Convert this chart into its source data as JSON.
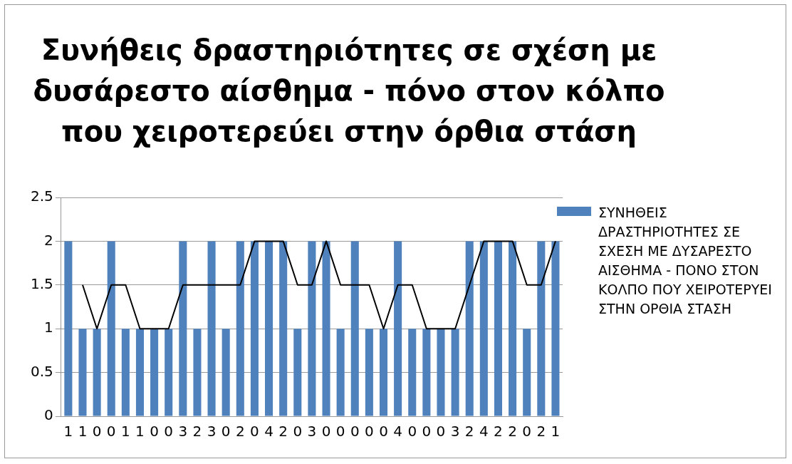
{
  "chart_data": {
    "type": "bar",
    "title": "Συνήθεις δραστηριότητες σε σχέση με δυσάρεστο αίσθημα - πόνο στον κόλπο που χειροτερεύει στην όρθια στάση",
    "categories": [
      "1",
      "1",
      "0",
      "0",
      "1",
      "1",
      "0",
      "0",
      "3",
      "2",
      "3",
      "0",
      "2",
      "0",
      "4",
      "2",
      "0",
      "3",
      "0",
      "0",
      "0",
      "0",
      "0",
      "4",
      "0",
      "0",
      "0",
      "3",
      "2",
      "4",
      "2",
      "2",
      "0",
      "2",
      "1"
    ],
    "series": [
      {
        "name": "ΣΥΝΗΘΕΙΣ ΔΡΑΣΤΗΡΙΟΤΗΤΕΣ ΣΕ ΣΧΕΣΗ ΜΕ ΔΥΣΑΡΕΣΤΟ ΑΙΣΘΗΜΑ - ΠΟΝΟ ΣΤΟΝ ΚΟΛΠΟ ΠΟΥ ΧΕΙΡΟΤΕΡΥΕΙ ΣΤΗΝ ΟΡΘΙΑ ΣΤΑΣΗ",
        "color": "#4f81bd",
        "values": [
          2,
          1,
          1,
          2,
          1,
          1,
          1,
          1,
          2,
          1,
          2,
          1,
          2,
          2,
          2,
          2,
          1,
          2,
          2,
          1,
          2,
          1,
          1,
          2,
          1,
          1,
          1,
          1,
          2,
          2,
          2,
          2,
          1,
          2,
          2
        ]
      },
      {
        "type": "line",
        "color": "#000000",
        "marker": "none",
        "values": [
          null,
          1.5,
          1,
          1.5,
          1.5,
          1,
          1,
          1,
          1.5,
          1.5,
          1.5,
          1.5,
          1.5,
          2,
          2,
          2,
          1.5,
          1.5,
          2,
          1.5,
          1.5,
          1.5,
          1,
          1.5,
          1.5,
          1,
          1,
          1,
          1.5,
          2,
          2,
          2,
          1.5,
          1.5,
          2
        ]
      }
    ],
    "ylim": [
      0,
      2.5
    ],
    "yticks": [
      0,
      0.5,
      1,
      1.5,
      2,
      2.5
    ],
    "grid": "y",
    "legend": "right"
  }
}
